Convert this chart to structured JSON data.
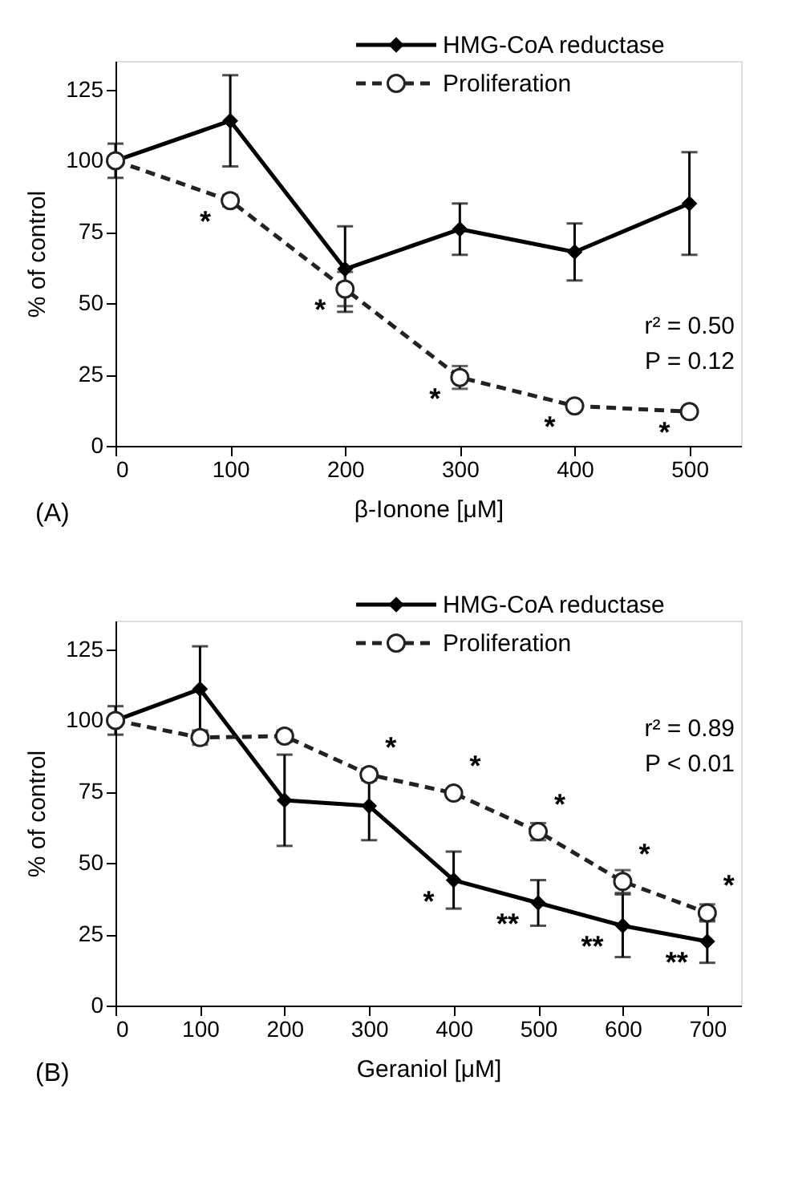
{
  "chart_data": [
    {
      "type": "line",
      "xlabel": "β-Ionone [μM]",
      "ylabel": "% of control",
      "x": [
        0,
        100,
        200,
        300,
        400,
        500
      ],
      "series": [
        {
          "name": "HMG-CoA reductase",
          "color": "#000000",
          "marker": "diamond",
          "line_style": "solid",
          "values": [
            100,
            114,
            62,
            76,
            68,
            85
          ],
          "errors": [
            6,
            16,
            15,
            9,
            10,
            18
          ]
        },
        {
          "name": "Proliferation",
          "color": "#222222",
          "marker": "circle",
          "line_style": "dashed",
          "values": [
            100,
            86,
            55,
            24,
            14,
            12
          ],
          "errors": [
            null,
            2,
            6,
            4,
            null,
            null
          ]
        }
      ],
      "xlim": [
        0,
        545
      ],
      "xticks": [
        0,
        100,
        200,
        300,
        400,
        500
      ],
      "ylim": [
        0,
        135
      ],
      "yticks": [
        0,
        25,
        50,
        75,
        100,
        125
      ],
      "grid": false,
      "legend": "top right",
      "annotations": [
        "r² = 0.50",
        "P = 0.12",
        "(A)",
        {
          "text": "*",
          "x": 100,
          "y": 86
        },
        {
          "text": "*",
          "x": 200,
          "y": 55
        },
        {
          "text": "*",
          "x": 300,
          "y": 24
        },
        {
          "text": "*",
          "x": 400,
          "y": 14
        },
        {
          "text": "*",
          "x": 500,
          "y": 12
        }
      ]
    },
    {
      "type": "line",
      "xlabel": "Geraniol [μM]",
      "ylabel": "% of control",
      "x": [
        0,
        100,
        200,
        300,
        400,
        500,
        600,
        700
      ],
      "series": [
        {
          "name": "HMG-CoA reductase",
          "color": "#000000",
          "marker": "diamond",
          "line_style": "solid",
          "values": [
            100,
            111,
            72,
            70,
            44,
            36,
            28,
            22.5
          ],
          "errors": [
            5,
            15,
            16,
            12,
            10,
            8,
            11,
            7.5
          ]
        },
        {
          "name": "Proliferation",
          "color": "#222222",
          "marker": "circle",
          "line_style": "dashed",
          "values": [
            100,
            94,
            94.5,
            81,
            74.5,
            61,
            43.5,
            32.5
          ],
          "errors": [
            null,
            2.5,
            2,
            2,
            null,
            3,
            4,
            3
          ]
        }
      ],
      "xlim": [
        0,
        740
      ],
      "xticks": [
        0,
        100,
        200,
        300,
        400,
        500,
        600,
        700
      ],
      "ylim": [
        0,
        135
      ],
      "yticks": [
        0,
        25,
        50,
        75,
        100,
        125
      ],
      "grid": false,
      "legend": "top right",
      "annotations": [
        "r² = 0.89",
        "P < 0.01",
        "(B)",
        {
          "text": "*",
          "x": 300,
          "y": 81
        },
        {
          "text": "*",
          "x": 400,
          "y": 74.5
        },
        {
          "text": "*",
          "x": 500,
          "y": 61
        },
        {
          "text": "*",
          "x": 600,
          "y": 43.5
        },
        {
          "text": "*",
          "x": 700,
          "y": 32.5
        },
        {
          "text": "*",
          "x": 400,
          "y": 44
        },
        {
          "text": "**",
          "x": 500,
          "y": 36
        },
        {
          "text": "**",
          "x": 600,
          "y": 28
        },
        {
          "text": "**",
          "x": 700,
          "y": 22.5
        }
      ]
    }
  ]
}
